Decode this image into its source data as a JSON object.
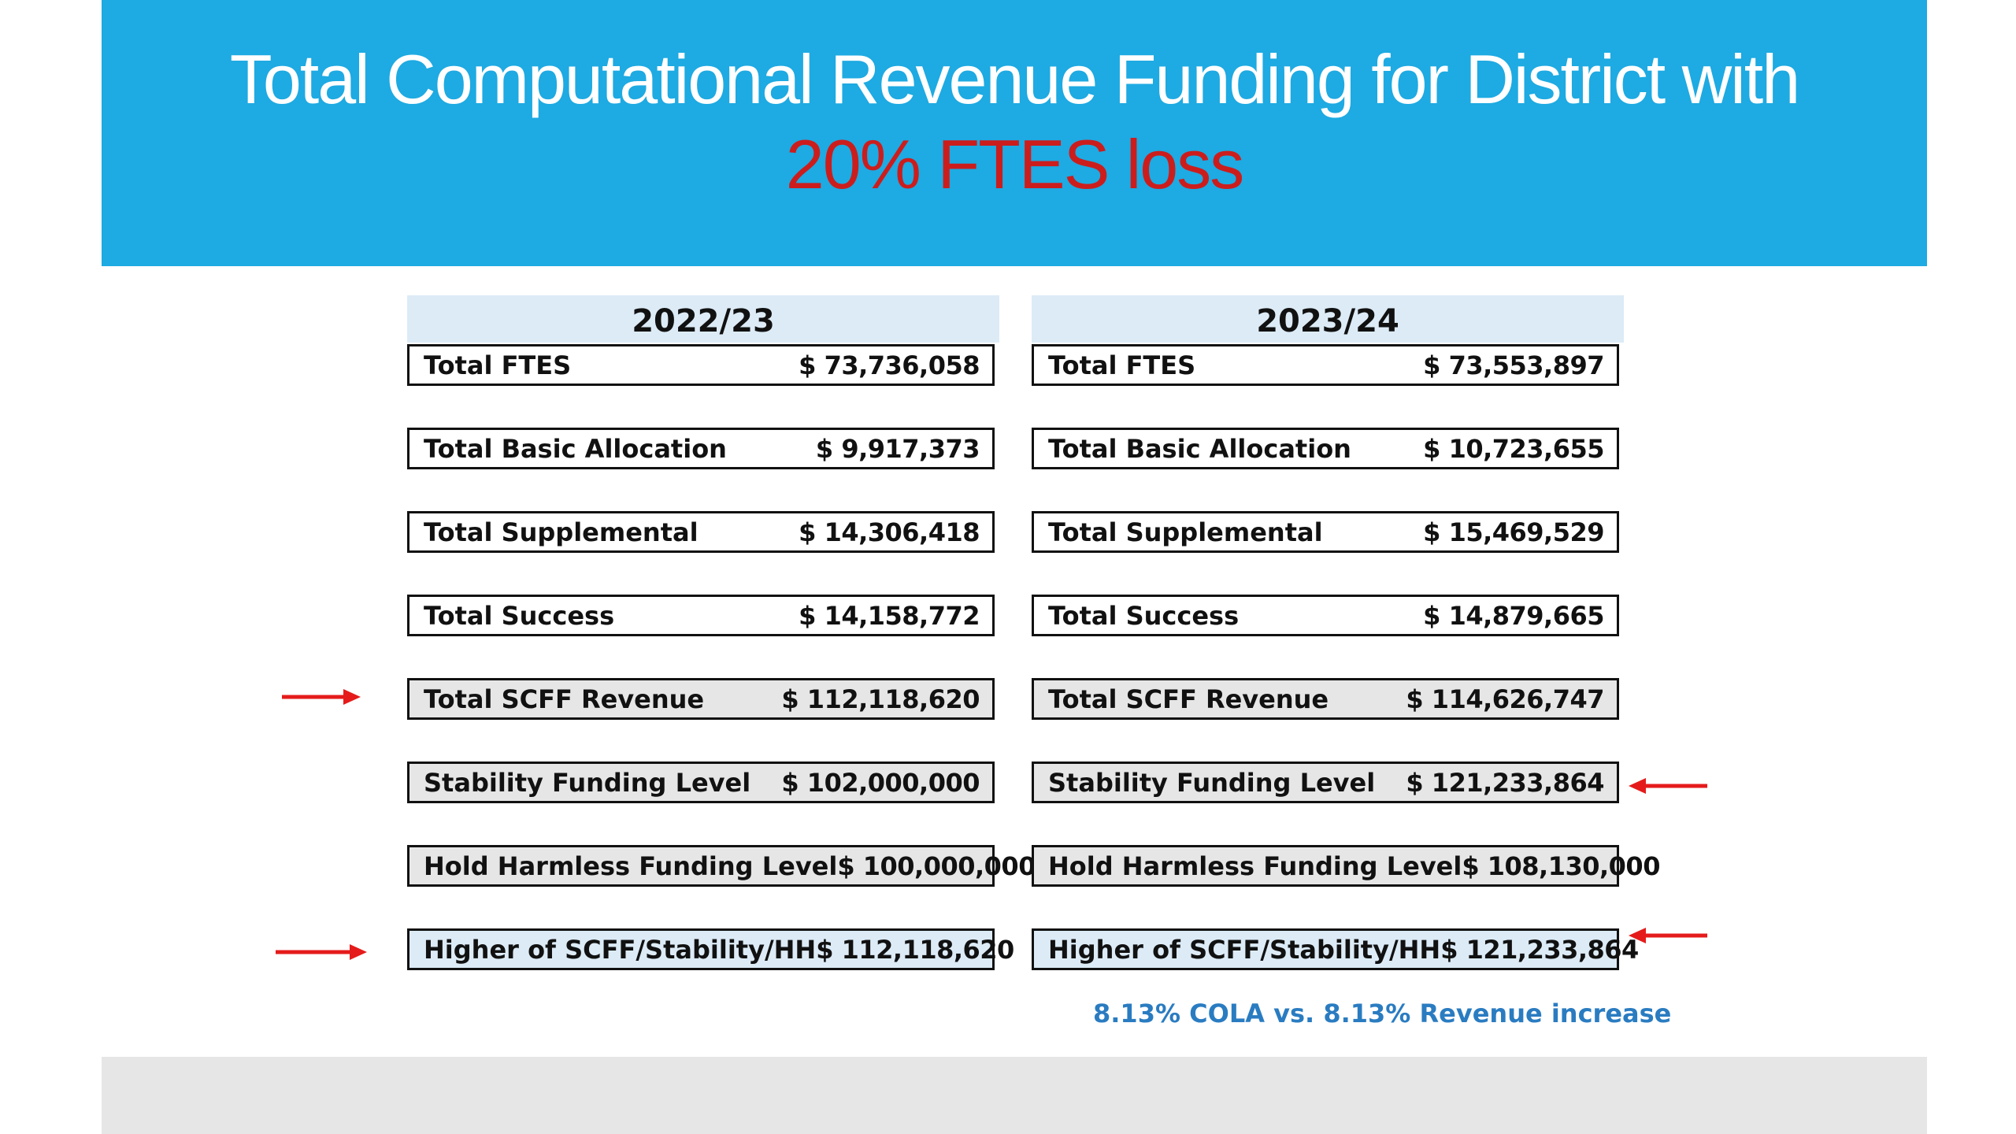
{
  "slide": {
    "title_line1": "Total Computational Revenue Funding for District with",
    "title_line2": "20% FTES loss",
    "colors": {
      "header_bg": "#1eaae2",
      "title_line2": "#cc1d1d",
      "arrow": "#e51b1b",
      "note": "#2a7cc1",
      "highlight_grey": "#e6e6e6",
      "highlight_blue": "#dcebf6"
    }
  },
  "left": {
    "year": "2022/23",
    "rows": [
      {
        "label": "Total FTES",
        "amount": "$  73,736,058"
      },
      {
        "label": "Total Basic Allocation",
        "amount": "$    9,917,373"
      },
      {
        "label": "Total Supplemental",
        "amount": "$  14,306,418"
      },
      {
        "label": "Total Success",
        "amount": "$  14,158,772"
      },
      {
        "label": "Total SCFF Revenue",
        "amount": "$ 112,118,620"
      },
      {
        "label": "Stability Funding Level",
        "amount": "$ 102,000,000"
      },
      {
        "label": "Hold Harmless Funding Level",
        "amount": "$ 100,000,000"
      },
      {
        "label": "Higher of SCFF/Stability/HH",
        "amount": "$ 112,118,620"
      }
    ]
  },
  "right": {
    "year": "2023/24",
    "rows": [
      {
        "label": "Total FTES",
        "amount": "$  73,553,897"
      },
      {
        "label": "Total Basic Allocation",
        "amount": "$  10,723,655"
      },
      {
        "label": "Total Supplemental",
        "amount": "$  15,469,529"
      },
      {
        "label": "Total Success",
        "amount": "$  14,879,665"
      },
      {
        "label": "Total SCFF Revenue",
        "amount": "$ 114,626,747"
      },
      {
        "label": "Stability Funding Level",
        "amount": "$ 121,233,864"
      },
      {
        "label": "Hold Harmless Funding Level",
        "amount": "$ 108,130,000"
      },
      {
        "label": "Higher of SCFF/Stability/HH",
        "amount": "$ 121,233,864"
      }
    ]
  },
  "note": "8.13% COLA vs. 8.13% Revenue increase",
  "arrows": [
    {
      "icon": "right-arrow-icon",
      "points_to": "left.total-scff-revenue"
    },
    {
      "icon": "right-arrow-icon",
      "points_to": "left.higher-of-scff-stability-hh"
    },
    {
      "icon": "left-arrow-icon",
      "points_to": "right.stability-funding-level"
    },
    {
      "icon": "left-arrow-icon",
      "points_to": "right.higher-of-scff-stability-hh"
    }
  ]
}
